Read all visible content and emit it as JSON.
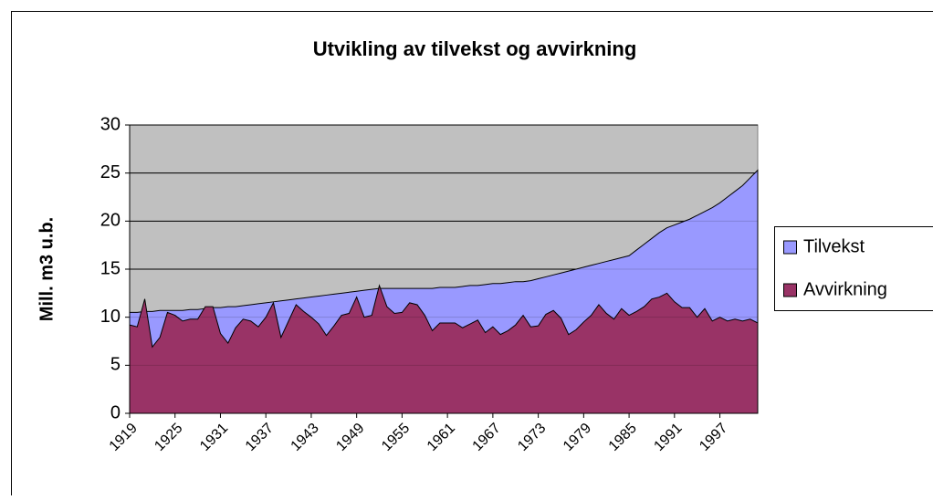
{
  "chart_data": {
    "type": "area",
    "title": "Utvikling av tilvekst og avvirkning",
    "y_label": "Mill. m3 u.b.",
    "categories": [
      "1919",
      null,
      null,
      null,
      null,
      null,
      "1925",
      null,
      null,
      null,
      null,
      null,
      "1931",
      null,
      null,
      null,
      null,
      null,
      "1937",
      null,
      null,
      null,
      null,
      null,
      "1943",
      null,
      null,
      null,
      null,
      null,
      "1949",
      null,
      null,
      null,
      null,
      null,
      "1955",
      null,
      null,
      null,
      null,
      null,
      "1961",
      null,
      null,
      null,
      null,
      null,
      "1967",
      null,
      null,
      null,
      null,
      null,
      "1973",
      null,
      null,
      null,
      null,
      null,
      "1979",
      null,
      null,
      null,
      null,
      null,
      "1985",
      null,
      null,
      null,
      null,
      null,
      "1991",
      null,
      null,
      null,
      null,
      null,
      "1997",
      null,
      null,
      null,
      null,
      null
    ],
    "series": [
      {
        "name": "Tilvekst",
        "color": "#9999ff",
        "values": [
          10.5,
          10.5,
          10.6,
          10.6,
          10.7,
          10.7,
          10.7,
          10.7,
          10.8,
          10.8,
          10.9,
          11.0,
          11.0,
          11.1,
          11.1,
          11.2,
          11.3,
          11.4,
          11.5,
          11.6,
          11.7,
          11.8,
          11.9,
          12.0,
          12.1,
          12.2,
          12.3,
          12.4,
          12.5,
          12.6,
          12.7,
          12.8,
          12.9,
          13.0,
          13.0,
          13.0,
          13.0,
          13.0,
          13.0,
          13.0,
          13.0,
          13.1,
          13.1,
          13.1,
          13.2,
          13.3,
          13.3,
          13.4,
          13.5,
          13.5,
          13.6,
          13.7,
          13.7,
          13.8,
          14.0,
          14.2,
          14.4,
          14.6,
          14.8,
          15.0,
          15.2,
          15.4,
          15.6,
          15.8,
          16.0,
          16.2,
          16.4,
          17.0,
          17.6,
          18.2,
          18.8,
          19.3,
          19.6,
          19.9,
          20.2,
          20.6,
          21.0,
          21.4,
          21.9,
          22.5,
          23.1,
          23.7,
          24.5,
          25.3
        ]
      },
      {
        "name": "Avvirkning",
        "color": "#993366",
        "values": [
          9.2,
          9.0,
          11.9,
          6.9,
          7.9,
          10.5,
          10.2,
          9.6,
          9.8,
          9.8,
          11.1,
          11.1,
          8.3,
          7.3,
          8.9,
          9.8,
          9.6,
          9.0,
          10.0,
          11.5,
          7.9,
          9.6,
          11.3,
          10.6,
          10.0,
          9.3,
          8.1,
          9.1,
          10.2,
          10.4,
          12.1,
          10.0,
          10.2,
          13.3,
          11.1,
          10.4,
          10.5,
          11.5,
          11.3,
          10.2,
          8.6,
          9.4,
          9.4,
          9.4,
          8.9,
          9.3,
          9.7,
          8.4,
          9.0,
          8.2,
          8.6,
          9.2,
          10.2,
          9.0,
          9.1,
          10.3,
          10.7,
          9.9,
          8.2,
          8.7,
          9.5,
          10.2,
          11.3,
          10.4,
          9.8,
          10.9,
          10.2,
          10.6,
          11.1,
          11.9,
          12.1,
          12.5,
          11.6,
          11.0,
          11.0,
          10.0,
          10.9,
          9.6,
          10.0,
          9.6,
          9.8,
          9.6,
          9.8,
          9.4
        ]
      }
    ],
    "ylim": [
      0,
      30
    ],
    "yticks": [
      0,
      5,
      10,
      15,
      20,
      25,
      30
    ],
    "grid": true,
    "legend": "right",
    "background": "#c0c0c0"
  }
}
